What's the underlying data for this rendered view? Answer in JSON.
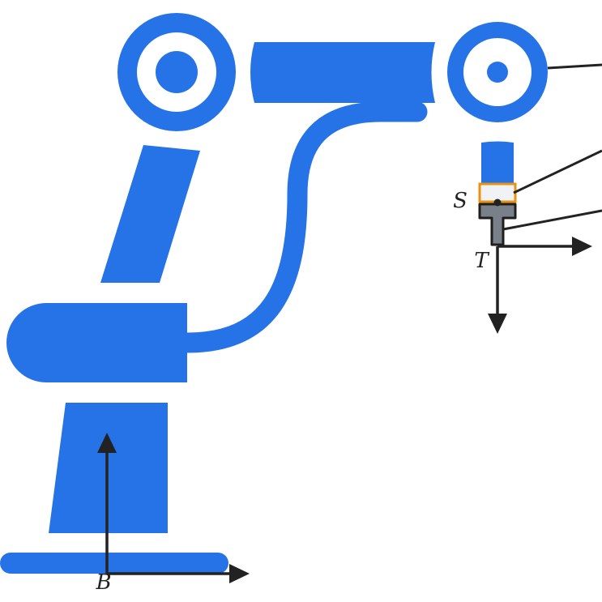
{
  "colors": {
    "robot": "#2673e8",
    "background": "#ffffff",
    "arrow": "#222222",
    "sensor_fill": "#f0f2f5",
    "sensor_outline": "#e8920f",
    "tool_fill": "#7a8089",
    "tool_outline": "#1e1e1e"
  },
  "labels": {
    "base_frame": "B",
    "sensor_frame": "S",
    "tool_frame": "T"
  },
  "icons": {
    "robot": "robot-arm-icon"
  }
}
